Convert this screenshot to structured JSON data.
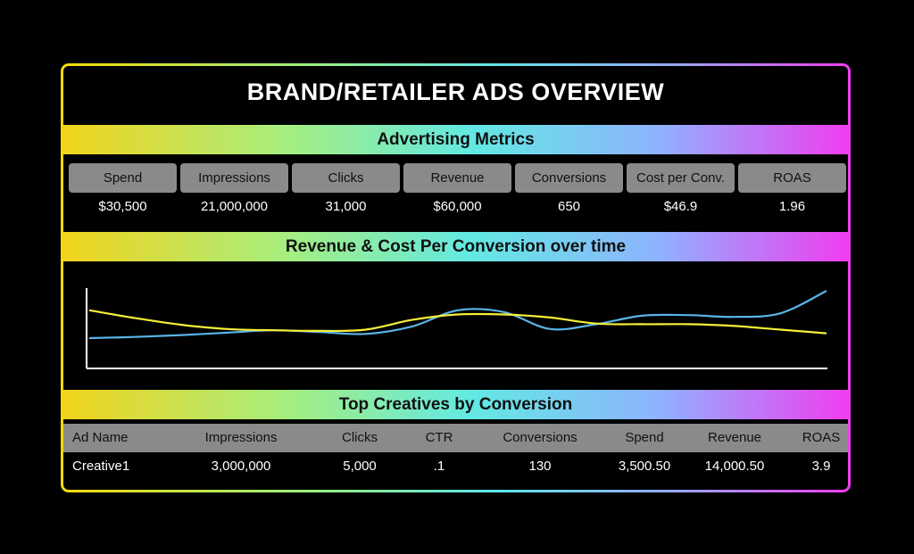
{
  "title": "BRAND/RETAILER ADS OVERVIEW",
  "sections": {
    "metrics_title": "Advertising Metrics",
    "chart_title": "Revenue & Cost Per Conversion over time",
    "table_title": "Top Creatives by Conversion"
  },
  "metrics": [
    {
      "label": "Spend",
      "value": "$30,500"
    },
    {
      "label": "Impressions",
      "value": "21,000,000"
    },
    {
      "label": "Clicks",
      "value": "31,000"
    },
    {
      "label": "Revenue",
      "value": "$60,000"
    },
    {
      "label": "Conversions",
      "value": "650"
    },
    {
      "label": "Cost per Conv.",
      "value": "$46.9"
    },
    {
      "label": "ROAS",
      "value": "1.96"
    }
  ],
  "table": {
    "headers": [
      "Ad Name",
      "Impressions",
      "Clicks",
      "CTR",
      "Conversions",
      "Spend",
      "Revenue",
      "ROAS"
    ],
    "rows": [
      [
        "Creative1",
        "3,000,000",
        "5,000",
        ".1",
        "130",
        "3,500.50",
        "14,000.50",
        "3.9"
      ]
    ]
  },
  "colors": {
    "line_blue": "#5ab4e8",
    "line_yellow": "#f5ef3a",
    "label_bg": "#8a8a8a"
  },
  "chart_data": {
    "type": "line",
    "title": "Revenue & Cost Per Conversion over time",
    "xlabel": "",
    "ylabel": "",
    "x": [
      0,
      1,
      2,
      3,
      4,
      5,
      6,
      7,
      8,
      9,
      10,
      11,
      12,
      13,
      14,
      15,
      16
    ],
    "ylim": [
      0,
      100
    ],
    "xlim": [
      0,
      16
    ],
    "grid": false,
    "series": [
      {
        "color": "#5ab4e8",
        "values": [
          22,
          24,
          27,
          31,
          35,
          32,
          29,
          41,
          68,
          65,
          37,
          45,
          59,
          60,
          57,
          63,
          100
        ]
      },
      {
        "color": "#f5ef3a",
        "values": [
          68,
          55,
          44,
          37,
          35,
          34,
          36,
          52,
          61,
          61,
          56,
          46,
          45,
          45,
          42,
          36,
          30
        ]
      }
    ]
  }
}
